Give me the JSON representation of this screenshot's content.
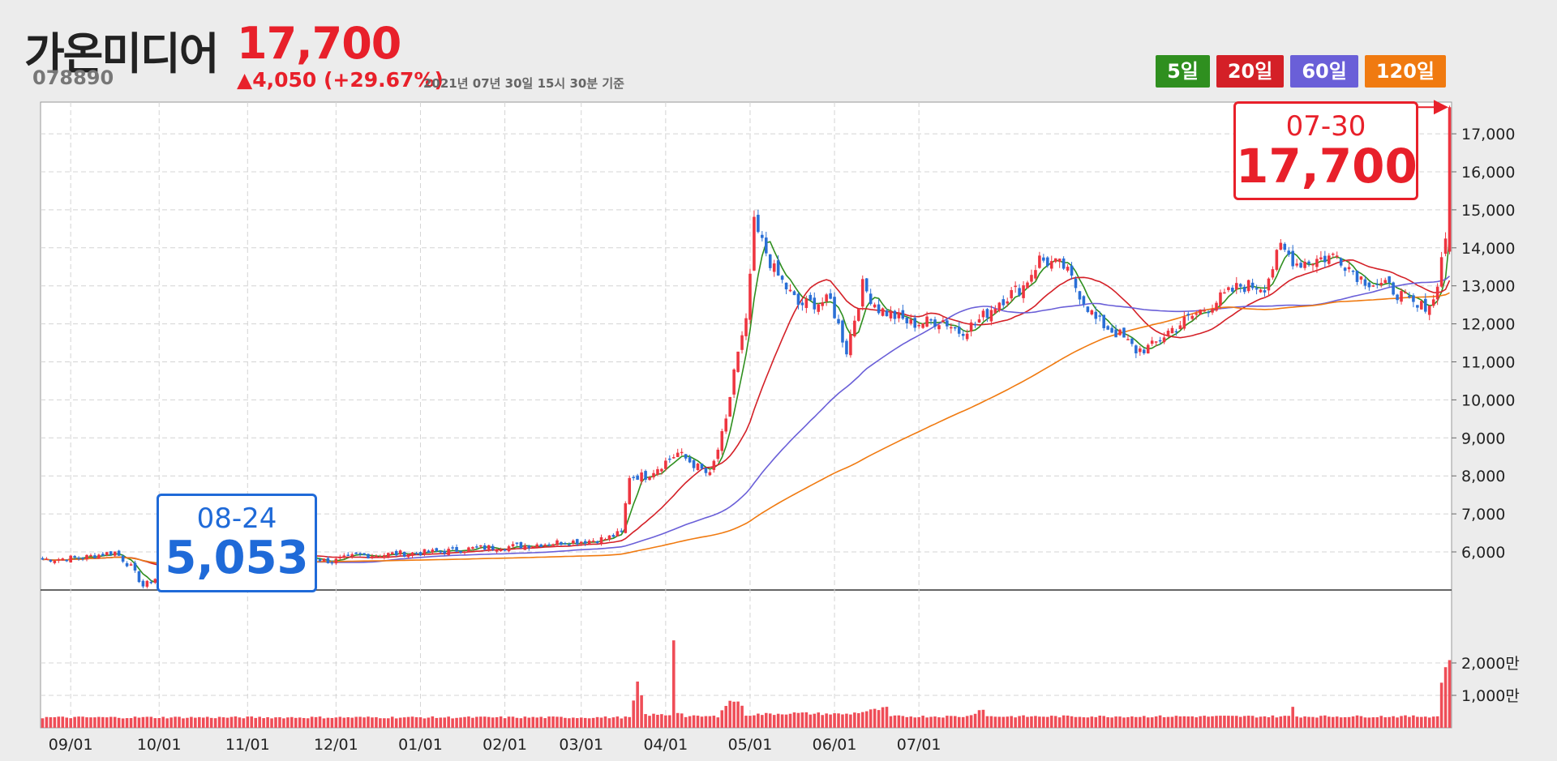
{
  "header": {
    "name": "가온미디어",
    "code": "078890",
    "price": "17,700",
    "change": "▲4,050 (+29.67%)",
    "timestamp": "2021년 07년 30일 15시 30분 기준"
  },
  "ma_buttons": [
    {
      "label": "5일",
      "color": "#2f8f1f"
    },
    {
      "label": "20일",
      "color": "#d42027"
    },
    {
      "label": "60일",
      "color": "#6a5fd8"
    },
    {
      "label": "120일",
      "color": "#f07a10"
    }
  ],
  "callouts": {
    "low": {
      "date": "08-24",
      "price": "5,053",
      "color": "#1f6ad8"
    },
    "last": {
      "date": "07-30",
      "price": "17,700",
      "color": "#e8202a"
    }
  },
  "chart_data": {
    "type": "candlestick",
    "x_ticks": [
      "09/01",
      "10/01",
      "11/01",
      "12/01",
      "01/01",
      "02/01",
      "03/01",
      "04/01",
      "05/01",
      "06/01",
      "07/01"
    ],
    "price_ticks": [
      "6,000",
      "7,000",
      "8,000",
      "9,000",
      "10,000",
      "11,000",
      "12,000",
      "13,000",
      "14,000",
      "15,000",
      "16,000",
      "17,000"
    ],
    "volume_ticks": [
      "1,000만",
      "2,000만"
    ],
    "ylim": [
      5053,
      17800
    ],
    "volume_ylim": [
      0,
      30000000
    ],
    "colors": {
      "up": "#ee3540",
      "down": "#2a6fd6",
      "volume": "#ef4d57"
    },
    "close_path": [
      [
        0,
        5800
      ],
      [
        10,
        5850
      ],
      [
        18,
        6000
      ],
      [
        22,
        5600
      ],
      [
        25,
        5100
      ],
      [
        28,
        5300
      ],
      [
        32,
        5450
      ],
      [
        40,
        5700
      ],
      [
        48,
        5900
      ],
      [
        58,
        5950
      ],
      [
        66,
        5850
      ],
      [
        72,
        5750
      ],
      [
        78,
        5900
      ],
      [
        88,
        5950
      ],
      [
        98,
        6000
      ],
      [
        108,
        6100
      ],
      [
        118,
        6150
      ],
      [
        128,
        6250
      ],
      [
        136,
        6300
      ],
      [
        140,
        6350
      ],
      [
        144,
        6500
      ],
      [
        146,
        8000
      ],
      [
        150,
        8000
      ],
      [
        158,
        8600
      ],
      [
        166,
        8000
      ],
      [
        170,
        9400
      ],
      [
        172,
        10800
      ],
      [
        175,
        12000
      ],
      [
        177,
        14600
      ],
      [
        182,
        13400
      ],
      [
        188,
        12500
      ],
      [
        196,
        12600
      ],
      [
        200,
        11300
      ],
      [
        204,
        13000
      ],
      [
        208,
        12400
      ],
      [
        216,
        12000
      ],
      [
        224,
        12100
      ],
      [
        228,
        11800
      ],
      [
        232,
        12000
      ],
      [
        238,
        12600
      ],
      [
        244,
        13000
      ],
      [
        248,
        13700
      ],
      [
        254,
        13500
      ],
      [
        258,
        12800
      ],
      [
        262,
        12100
      ],
      [
        268,
        11700
      ],
      [
        272,
        11300
      ],
      [
        276,
        11400
      ],
      [
        280,
        11800
      ],
      [
        286,
        12200
      ],
      [
        292,
        12600
      ],
      [
        298,
        13000
      ],
      [
        304,
        13000
      ],
      [
        308,
        14000
      ],
      [
        312,
        13600
      ],
      [
        322,
        13800
      ],
      [
        328,
        13200
      ],
      [
        336,
        12900
      ],
      [
        342,
        12400
      ],
      [
        346,
        12600
      ],
      [
        348,
        13700
      ],
      [
        349,
        14300
      ],
      [
        350,
        17700
      ]
    ],
    "volume_path": [
      [
        0,
        3200000
      ],
      [
        146,
        3200000
      ],
      [
        147,
        8000000
      ],
      [
        148,
        13000000
      ],
      [
        149,
        10000000
      ],
      [
        150,
        4000000
      ],
      [
        156,
        4000000
      ],
      [
        157,
        28000000
      ],
      [
        158,
        5000000
      ],
      [
        160,
        3500000
      ],
      [
        168,
        3500000
      ],
      [
        169,
        6000000
      ],
      [
        171,
        8000000
      ],
      [
        173,
        8500000
      ],
      [
        175,
        4000000
      ],
      [
        186,
        4500000
      ],
      [
        200,
        4200000
      ],
      [
        210,
        6000000
      ],
      [
        211,
        3500000
      ],
      [
        230,
        3500000
      ],
      [
        234,
        6000000
      ],
      [
        235,
        3500000
      ],
      [
        310,
        3500000
      ],
      [
        311,
        6500000
      ],
      [
        312,
        3500000
      ],
      [
        347,
        3500000
      ],
      [
        348,
        14000000
      ],
      [
        349,
        20000000
      ],
      [
        350,
        20000000
      ]
    ],
    "ma_periods": [
      5,
      20,
      60,
      120
    ]
  }
}
